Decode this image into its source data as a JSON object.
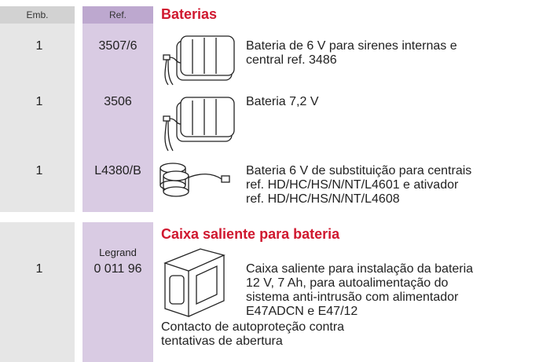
{
  "header": {
    "emb": "Emb.",
    "ref": "Ref."
  },
  "sections": [
    {
      "title": "Baterias",
      "items": [
        {
          "emb": "1",
          "ref": "3507/6",
          "description": [
            "Bateria de 6 V para sirenes internas e",
            "central ref. 3486"
          ]
        },
        {
          "emb": "1",
          "ref": "3506",
          "description": [
            "Bateria 7,2 V"
          ]
        },
        {
          "emb": "1",
          "ref": "L4380/B",
          "description": [
            "Bateria 6 V de substituição para centrais",
            "ref. HD/HC/HS/N/NT/L4601 e ativador",
            "ref. HD/HC/HS/N/NT/L4608"
          ]
        }
      ]
    },
    {
      "title": "Caixa saliente para bateria",
      "items": [
        {
          "emb": "1",
          "ref_brand": "Legrand",
          "ref": "0 011 96",
          "description": [
            "Caixa saliente para instalação da bateria",
            "12 V, 7 Ah, para autoalimentação do",
            "sistema anti-intrusão com alimentador",
            "E47ADCN e E47/12"
          ],
          "note": [
            "Contacto de autoproteção contra",
            "tentativas de abertura"
          ]
        }
      ]
    }
  ]
}
